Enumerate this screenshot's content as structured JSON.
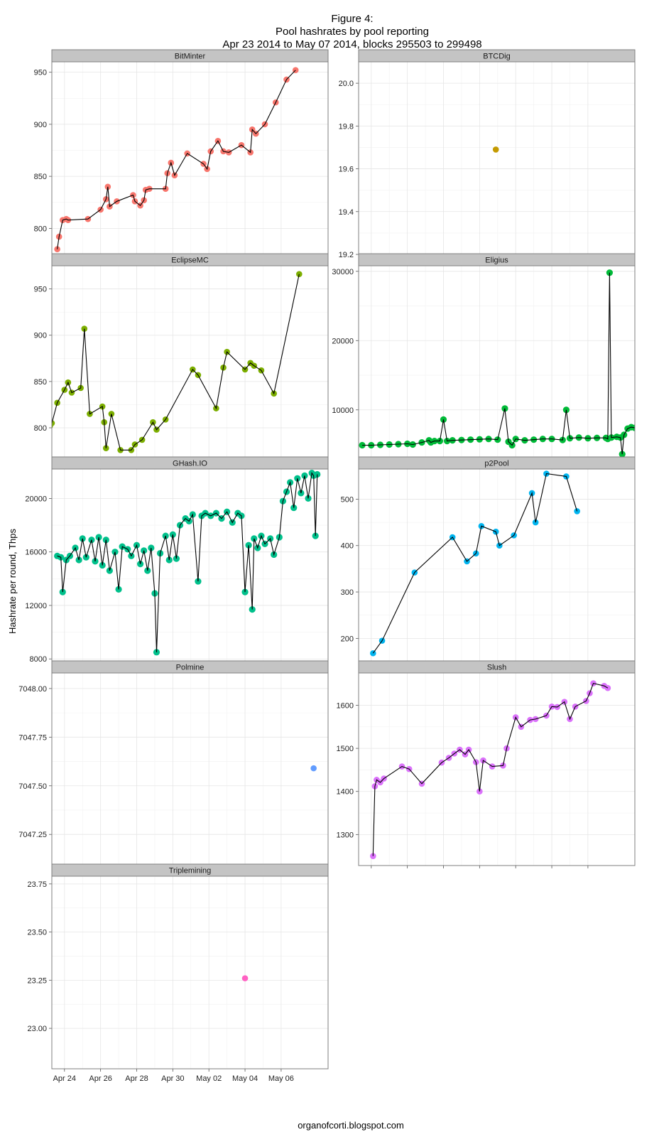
{
  "figure": {
    "title_lines": [
      "Figure 4:",
      "Pool hashrates by pool reporting",
      "Apr 23 2014 to May 07 2014, blocks 295503 to 299498"
    ],
    "ylabel": "Hashrate per round, Thps",
    "credit": "organofcorti.blogspot.com"
  },
  "chart_data": {
    "type": "scatter",
    "facets": true,
    "xaxis": {
      "range": [
        23.3,
        38.6
      ],
      "ticks": [
        {
          "v": 24,
          "label": "Apr 24"
        },
        {
          "v": 26,
          "label": "Apr 26"
        },
        {
          "v": 28,
          "label": "Apr 28"
        },
        {
          "v": 30,
          "label": "Apr 30"
        },
        {
          "v": 32,
          "label": "May 02"
        },
        {
          "v": 34,
          "label": "May 04"
        },
        {
          "v": 36,
          "label": "May 06"
        }
      ]
    },
    "panels": [
      {
        "name": "BitMinter",
        "color": "#F8766D",
        "ylim": [
          775,
          960
        ],
        "yticks": [
          {
            "v": 800,
            "label": "800"
          },
          {
            "v": 850,
            "label": "850"
          },
          {
            "v": 900,
            "label": "900"
          },
          {
            "v": 950,
            "label": "950"
          }
        ],
        "points": [
          [
            23.6,
            780
          ],
          [
            23.7,
            792
          ],
          [
            23.9,
            808
          ],
          [
            24.1,
            809
          ],
          [
            24.2,
            808
          ],
          [
            25.3,
            809
          ],
          [
            26.0,
            818
          ],
          [
            26.3,
            828
          ],
          [
            26.4,
            840
          ],
          [
            26.5,
            821
          ],
          [
            26.9,
            826
          ],
          [
            27.8,
            832
          ],
          [
            27.9,
            826
          ],
          [
            28.2,
            822
          ],
          [
            28.4,
            827
          ],
          [
            28.5,
            837
          ],
          [
            28.7,
            838
          ],
          [
            29.6,
            838
          ],
          [
            29.7,
            853
          ],
          [
            29.9,
            863
          ],
          [
            30.1,
            851
          ],
          [
            30.8,
            872
          ],
          [
            31.7,
            862
          ],
          [
            31.9,
            857
          ],
          [
            32.1,
            874
          ],
          [
            32.5,
            884
          ],
          [
            32.8,
            874
          ],
          [
            33.1,
            873
          ],
          [
            33.8,
            880
          ],
          [
            34.3,
            873
          ],
          [
            34.4,
            895
          ],
          [
            34.6,
            891
          ],
          [
            35.1,
            900
          ],
          [
            35.7,
            921
          ],
          [
            36.3,
            943
          ],
          [
            36.8,
            952
          ]
        ]
      },
      {
        "name": "BTCDig",
        "color": "#C49A00",
        "ylim": [
          19.2,
          20.1
        ],
        "yticks": [
          {
            "v": 19.2,
            "label": "19.2"
          },
          {
            "v": 19.4,
            "label": "19.4"
          },
          {
            "v": 19.6,
            "label": "19.6"
          },
          {
            "v": 19.8,
            "label": "19.8"
          },
          {
            "v": 20.0,
            "label": "20.0"
          }
        ],
        "points": [
          [
            30.9,
            19.69
          ]
        ],
        "line": false
      },
      {
        "name": "EclipseMC",
        "color": "#7CAE00",
        "ylim": [
          767,
          975
        ],
        "yticks": [
          {
            "v": 800,
            "label": "800"
          },
          {
            "v": 850,
            "label": "850"
          },
          {
            "v": 900,
            "label": "900"
          },
          {
            "v": 950,
            "label": "950"
          }
        ],
        "points": [
          [
            23.2,
            802
          ],
          [
            23.3,
            805
          ],
          [
            23.6,
            827
          ],
          [
            24.0,
            841
          ],
          [
            24.2,
            849
          ],
          [
            24.4,
            838
          ],
          [
            24.9,
            843
          ],
          [
            25.1,
            907
          ],
          [
            25.4,
            815
          ],
          [
            26.1,
            823
          ],
          [
            26.2,
            806
          ],
          [
            26.3,
            778
          ],
          [
            26.6,
            815
          ],
          [
            27.1,
            776
          ],
          [
            27.7,
            776
          ],
          [
            27.9,
            782
          ],
          [
            28.3,
            787
          ],
          [
            28.9,
            806
          ],
          [
            29.1,
            798
          ],
          [
            29.6,
            809
          ],
          [
            31.1,
            863
          ],
          [
            31.4,
            857
          ],
          [
            32.4,
            821
          ],
          [
            32.8,
            865
          ],
          [
            33.0,
            882
          ],
          [
            34.0,
            863
          ],
          [
            34.3,
            870
          ],
          [
            34.5,
            867
          ],
          [
            34.9,
            862
          ],
          [
            35.6,
            837
          ],
          [
            37.0,
            966
          ]
        ]
      },
      {
        "name": "Eligius",
        "color": "#00BA38",
        "ylim": [
          3000,
          30800
        ],
        "yticks": [
          {
            "v": 10000,
            "label": "10000"
          },
          {
            "v": 20000,
            "label": "20000"
          },
          {
            "v": 30000,
            "label": "30000"
          }
        ],
        "series_kind": "dense",
        "points": [
          [
            23.5,
            4900
          ],
          [
            24.0,
            4900
          ],
          [
            24.5,
            4950
          ],
          [
            25.0,
            5000
          ],
          [
            25.5,
            5050
          ],
          [
            26.0,
            5100
          ],
          [
            26.3,
            5000
          ],
          [
            26.8,
            5300
          ],
          [
            27.2,
            5600
          ],
          [
            27.3,
            5300
          ],
          [
            27.5,
            5500
          ],
          [
            27.8,
            5500
          ],
          [
            28.0,
            8600
          ],
          [
            28.2,
            5500
          ],
          [
            28.5,
            5600
          ],
          [
            29.0,
            5650
          ],
          [
            29.5,
            5700
          ],
          [
            30.0,
            5750
          ],
          [
            30.5,
            5800
          ],
          [
            31.0,
            5700
          ],
          [
            31.4,
            10200
          ],
          [
            31.6,
            5400
          ],
          [
            31.8,
            4900
          ],
          [
            32.0,
            5800
          ],
          [
            32.5,
            5600
          ],
          [
            33.0,
            5700
          ],
          [
            33.5,
            5800
          ],
          [
            34.0,
            5800
          ],
          [
            34.6,
            5650
          ],
          [
            34.8,
            10000
          ],
          [
            35.0,
            5900
          ],
          [
            35.5,
            6000
          ],
          [
            36.0,
            5900
          ],
          [
            36.5,
            5950
          ],
          [
            37.0,
            5950
          ],
          [
            37.1,
            5800
          ],
          [
            37.2,
            29800
          ],
          [
            37.3,
            6000
          ],
          [
            37.6,
            6100
          ],
          [
            37.8,
            6000
          ],
          [
            37.9,
            3600
          ],
          [
            38.0,
            6400
          ],
          [
            38.2,
            7300
          ],
          [
            38.4,
            7500
          ],
          [
            38.6,
            7400
          ],
          [
            38.8,
            7600
          ],
          [
            39.0,
            7500
          ]
        ]
      },
      {
        "name": "GHash.IO",
        "color": "#00C08B",
        "ylim": [
          7800,
          22200
        ],
        "yticks": [
          {
            "v": 8000,
            "label": "8000"
          },
          {
            "v": 12000,
            "label": "12000"
          },
          {
            "v": 16000,
            "label": "16000"
          },
          {
            "v": 20000,
            "label": "20000"
          }
        ],
        "series_kind": "dense",
        "points": [
          [
            23.6,
            15700
          ],
          [
            23.8,
            15600
          ],
          [
            23.9,
            13000
          ],
          [
            24.1,
            15400
          ],
          [
            24.3,
            15700
          ],
          [
            24.6,
            16300
          ],
          [
            24.8,
            15400
          ],
          [
            25.0,
            17000
          ],
          [
            25.2,
            15600
          ],
          [
            25.5,
            16900
          ],
          [
            25.7,
            15300
          ],
          [
            25.9,
            17100
          ],
          [
            26.1,
            15000
          ],
          [
            26.3,
            16900
          ],
          [
            26.5,
            14600
          ],
          [
            26.8,
            16000
          ],
          [
            27.0,
            13200
          ],
          [
            27.2,
            16400
          ],
          [
            27.5,
            16200
          ],
          [
            27.7,
            15700
          ],
          [
            28.0,
            16500
          ],
          [
            28.2,
            15100
          ],
          [
            28.4,
            16100
          ],
          [
            28.6,
            14600
          ],
          [
            28.8,
            16300
          ],
          [
            29.0,
            12900
          ],
          [
            29.1,
            8500
          ],
          [
            29.3,
            15900
          ],
          [
            29.6,
            17200
          ],
          [
            29.8,
            15400
          ],
          [
            30.0,
            17300
          ],
          [
            30.2,
            15500
          ],
          [
            30.4,
            18000
          ],
          [
            30.7,
            18500
          ],
          [
            30.9,
            18300
          ],
          [
            31.1,
            18800
          ],
          [
            31.4,
            13800
          ],
          [
            31.6,
            18700
          ],
          [
            31.8,
            18900
          ],
          [
            32.1,
            18700
          ],
          [
            32.4,
            18900
          ],
          [
            32.7,
            18500
          ],
          [
            33.0,
            19000
          ],
          [
            33.3,
            18200
          ],
          [
            33.6,
            18900
          ],
          [
            33.8,
            18700
          ],
          [
            34.0,
            13000
          ],
          [
            34.2,
            16500
          ],
          [
            34.4,
            11700
          ],
          [
            34.5,
            17000
          ],
          [
            34.7,
            16300
          ],
          [
            34.9,
            17200
          ],
          [
            35.1,
            16600
          ],
          [
            35.4,
            17000
          ],
          [
            35.6,
            15800
          ],
          [
            35.9,
            17100
          ],
          [
            36.1,
            19800
          ],
          [
            36.3,
            20500
          ],
          [
            36.5,
            21200
          ],
          [
            36.7,
            19300
          ],
          [
            36.9,
            21500
          ],
          [
            37.1,
            20400
          ],
          [
            37.3,
            21700
          ],
          [
            37.5,
            20000
          ],
          [
            37.7,
            21900
          ],
          [
            37.8,
            21700
          ],
          [
            37.9,
            17200
          ],
          [
            38.0,
            21800
          ]
        ]
      },
      {
        "name": "p2Pool",
        "color": "#00B4EF",
        "ylim": [
          150,
          565
        ],
        "yticks": [
          {
            "v": 200,
            "label": "200"
          },
          {
            "v": 300,
            "label": "300"
          },
          {
            "v": 400,
            "label": "400"
          },
          {
            "v": 500,
            "label": "500"
          }
        ],
        "points": [
          [
            24.1,
            168
          ],
          [
            24.6,
            195
          ],
          [
            26.4,
            342
          ],
          [
            28.5,
            418
          ],
          [
            29.3,
            366
          ],
          [
            29.8,
            383
          ],
          [
            30.1,
            442
          ],
          [
            30.9,
            430
          ],
          [
            31.1,
            400
          ],
          [
            31.9,
            422
          ],
          [
            32.9,
            513
          ],
          [
            33.1,
            450
          ],
          [
            33.7,
            555
          ],
          [
            34.8,
            549
          ],
          [
            35.4,
            474
          ]
        ]
      },
      {
        "name": "Polmine",
        "color": "#619CFF",
        "ylim": [
          7047.09,
          7048.08
        ],
        "yticks": [
          {
            "v": 7047.25,
            "label": "7047.25"
          },
          {
            "v": 7047.5,
            "label": "7047.50"
          },
          {
            "v": 7047.75,
            "label": "7047.75"
          },
          {
            "v": 7048.0,
            "label": "7048.00"
          }
        ],
        "points": [
          [
            37.8,
            7047.59
          ]
        ],
        "line": false
      },
      {
        "name": "Slush",
        "color": "#DB72FB",
        "ylim": [
          1228,
          1675
        ],
        "yticks": [
          {
            "v": 1300,
            "label": "1300"
          },
          {
            "v": 1400,
            "label": "1400"
          },
          {
            "v": 1500,
            "label": "1500"
          },
          {
            "v": 1600,
            "label": "1600"
          }
        ],
        "points": [
          [
            24.1,
            1250
          ],
          [
            24.2,
            1412
          ],
          [
            24.3,
            1427
          ],
          [
            24.5,
            1421
          ],
          [
            24.7,
            1430
          ],
          [
            25.7,
            1458
          ],
          [
            26.1,
            1452
          ],
          [
            26.8,
            1418
          ],
          [
            27.9,
            1467
          ],
          [
            28.3,
            1478
          ],
          [
            28.6,
            1488
          ],
          [
            28.9,
            1497
          ],
          [
            29.2,
            1486
          ],
          [
            29.4,
            1497
          ],
          [
            29.8,
            1468
          ],
          [
            30.0,
            1400
          ],
          [
            30.2,
            1472
          ],
          [
            30.7,
            1458
          ],
          [
            31.3,
            1460
          ],
          [
            31.5,
            1500
          ],
          [
            32.0,
            1572
          ],
          [
            32.3,
            1550
          ],
          [
            32.8,
            1566
          ],
          [
            33.1,
            1568
          ],
          [
            33.7,
            1576
          ],
          [
            34.0,
            1597
          ],
          [
            34.3,
            1596
          ],
          [
            34.7,
            1608
          ],
          [
            35.0,
            1568
          ],
          [
            35.3,
            1597
          ],
          [
            35.9,
            1610
          ],
          [
            36.1,
            1628
          ],
          [
            36.3,
            1651
          ],
          [
            36.9,
            1645
          ],
          [
            37.1,
            1640
          ]
        ]
      },
      {
        "name": "Triplemining",
        "color": "#FF61C3",
        "ylim": [
          22.79,
          23.79
        ],
        "yticks": [
          {
            "v": 23.0,
            "label": "23.00"
          },
          {
            "v": 23.25,
            "label": "23.25"
          },
          {
            "v": 23.5,
            "label": "23.50"
          },
          {
            "v": 23.75,
            "label": "23.75"
          }
        ],
        "points": [
          [
            34.0,
            23.26
          ]
        ],
        "line": false
      }
    ],
    "grid": true,
    "legend": "none"
  }
}
